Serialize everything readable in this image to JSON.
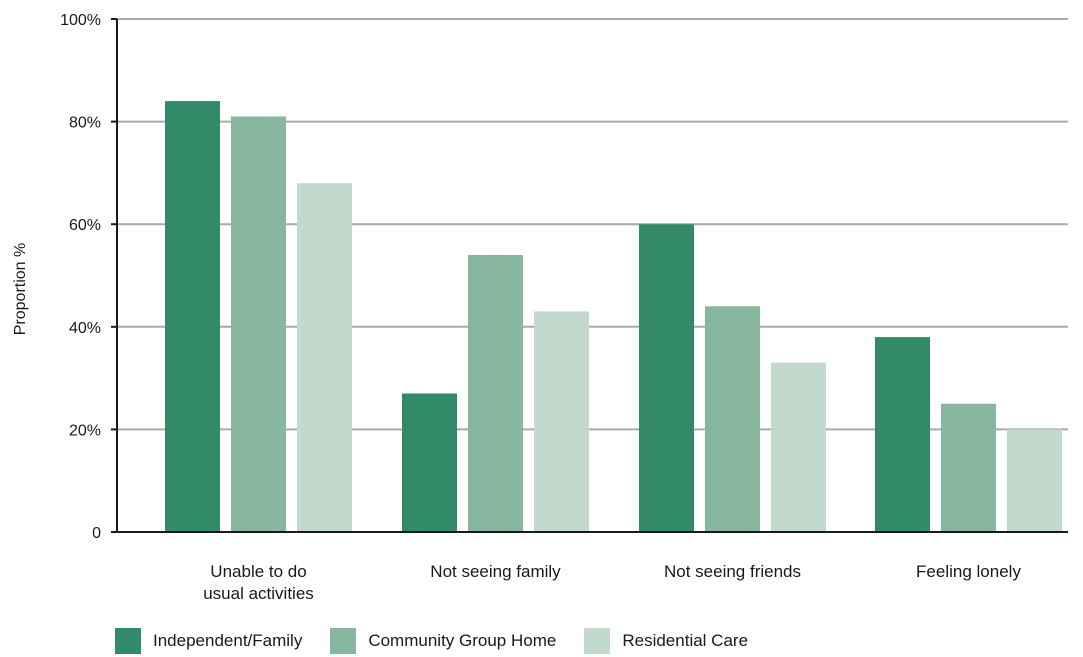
{
  "chart_data": {
    "type": "bar",
    "ylabel": "Proportion %",
    "xlabel": "",
    "ylim": [
      0,
      100
    ],
    "yticks": [
      0,
      20,
      40,
      60,
      80,
      100
    ],
    "ytick_labels": [
      "0",
      "20%",
      "40%",
      "60%",
      "80%",
      "100%"
    ],
    "grid": true,
    "legend_position": "bottom-left",
    "categories": [
      [
        "Unable to do",
        "usual activities"
      ],
      [
        "Not seeing family"
      ],
      [
        "Not seeing friends"
      ],
      [
        "Feeling lonely"
      ]
    ],
    "series": [
      {
        "name": "Independent/Family",
        "color": "#338a68",
        "values": [
          84,
          27,
          60,
          38
        ]
      },
      {
        "name": "Community Group Home",
        "color": "#87b79f",
        "values": [
          81,
          54,
          44,
          25
        ]
      },
      {
        "name": "Residential Care",
        "color": "#c2d9cd",
        "values": [
          68,
          43,
          33,
          20
        ]
      }
    ],
    "colors": {
      "grid": "#aaaaaa",
      "axis": "#1a1a1a"
    }
  }
}
